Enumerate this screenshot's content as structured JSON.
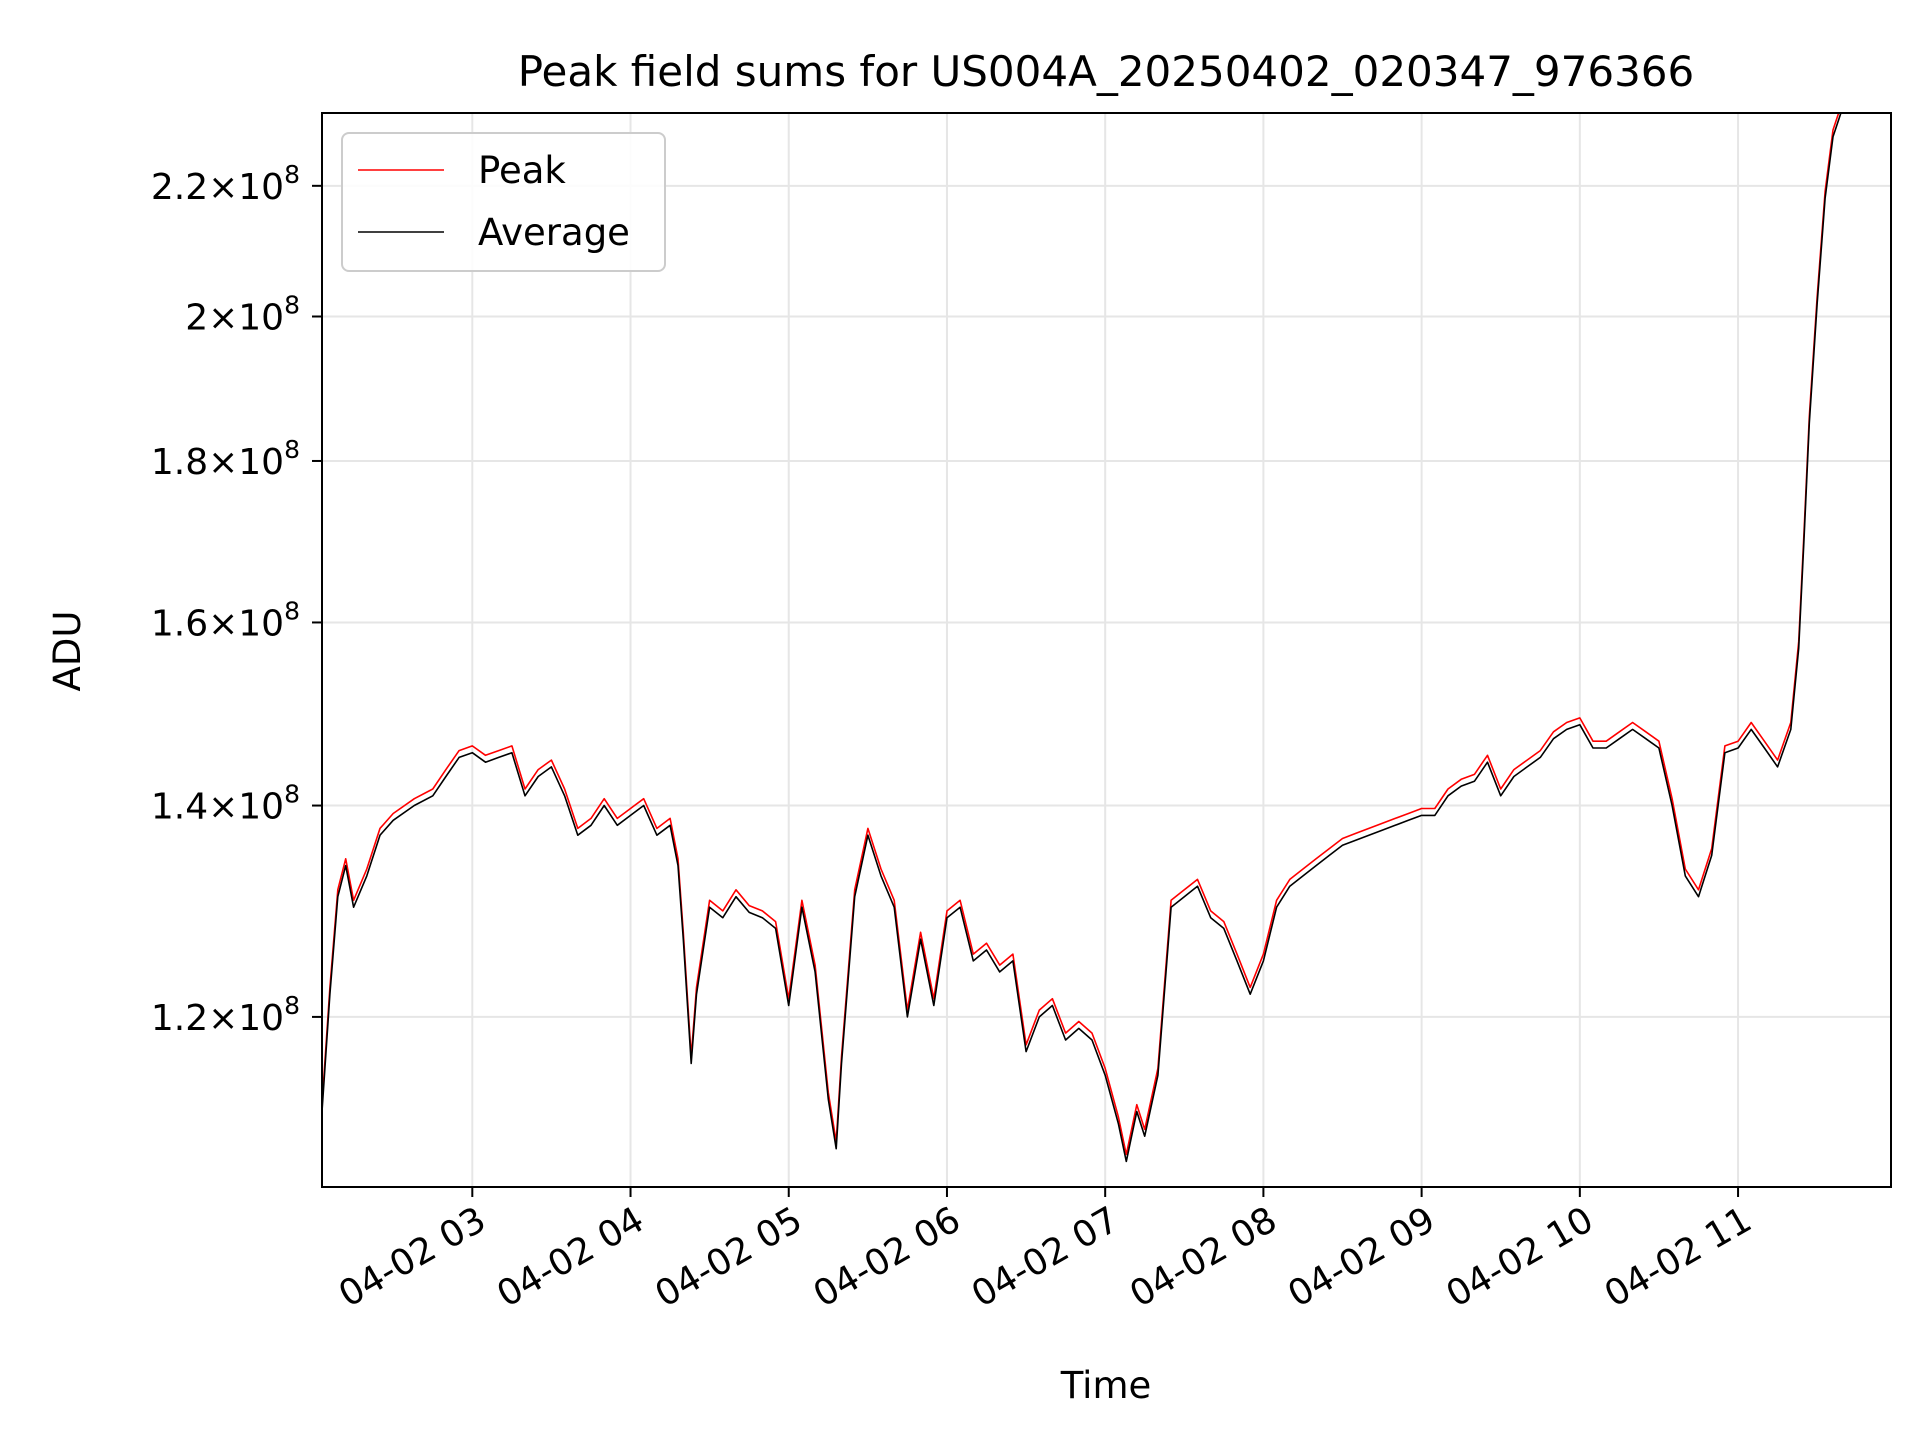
{
  "chart_data": {
    "type": "line",
    "title": "Peak field sums for US004A_20250402_020347_976366",
    "xlabel": "Time",
    "ylabel": "ADU",
    "yscale": "log",
    "grid": true,
    "legend_position": "top-left",
    "xlim": [
      "04-02 02:03",
      "04-02 11:58"
    ],
    "ylim": [
      106000000,
      232000000
    ],
    "x_ticks": [
      "04-02 03",
      "04-02 04",
      "04-02 05",
      "04-02 06",
      "04-02 07",
      "04-02 08",
      "04-02 09",
      "04-02 10",
      "04-02 11"
    ],
    "y_ticks": [
      {
        "mant": "1.2",
        "exp": "8",
        "value": 120000000
      },
      {
        "mant": "1.4",
        "exp": "8",
        "value": 140000000
      },
      {
        "mant": "1.6",
        "exp": "8",
        "value": 160000000
      },
      {
        "mant": "1.8",
        "exp": "8",
        "value": 180000000
      },
      {
        "mant": "2",
        "exp": "8",
        "value": 200000000
      },
      {
        "mant": "2.2",
        "exp": "8",
        "value": 220000000
      }
    ],
    "x_unit": "time (04-02 HH:MM)",
    "series": [
      {
        "name": "Average",
        "color": "#000000",
        "x": [
          "02:03",
          "02:06",
          "02:09",
          "02:12",
          "02:15",
          "02:20",
          "02:25",
          "02:30",
          "02:38",
          "02:45",
          "02:50",
          "02:55",
          "03:00",
          "03:05",
          "03:10",
          "03:15",
          "03:20",
          "03:25",
          "03:30",
          "03:35",
          "03:40",
          "03:45",
          "03:50",
          "03:55",
          "04:00",
          "04:05",
          "04:10",
          "04:15",
          "04:18",
          "04:20",
          "04:23",
          "04:25",
          "04:30",
          "04:35",
          "04:40",
          "04:45",
          "04:50",
          "04:55",
          "05:00",
          "05:05",
          "05:10",
          "05:15",
          "05:18",
          "05:20",
          "05:25",
          "05:30",
          "05:35",
          "05:40",
          "05:45",
          "05:50",
          "05:55",
          "06:00",
          "06:05",
          "06:10",
          "06:15",
          "06:20",
          "06:25",
          "06:30",
          "06:35",
          "06:40",
          "06:45",
          "06:50",
          "06:55",
          "07:00",
          "07:05",
          "07:08",
          "07:12",
          "07:15",
          "07:20",
          "07:25",
          "07:30",
          "07:35",
          "07:40",
          "07:45",
          "07:50",
          "07:55",
          "08:00",
          "08:05",
          "08:10",
          "08:15",
          "08:20",
          "08:25",
          "08:30",
          "08:35",
          "08:40",
          "08:45",
          "08:50",
          "08:55",
          "09:00",
          "09:05",
          "09:10",
          "09:15",
          "09:20",
          "09:25",
          "09:30",
          "09:35",
          "09:40",
          "09:45",
          "09:50",
          "09:55",
          "10:00",
          "10:05",
          "10:10",
          "10:15",
          "10:20",
          "10:25",
          "10:30",
          "10:35",
          "10:40",
          "10:45",
          "10:50",
          "10:55",
          "11:00",
          "11:05",
          "11:10",
          "11:15",
          "11:20",
          "11:23",
          "11:25",
          "11:27",
          "11:30",
          "11:33",
          "11:36",
          "11:39",
          "11:42",
          "11:45",
          "11:50",
          "11:58"
        ],
        "y": [
          112000000,
          122000000,
          131000000,
          134000000,
          130000000,
          133000000,
          137000000,
          138500000,
          140000000,
          141000000,
          143000000,
          145000000,
          145500000,
          144500000,
          145000000,
          145500000,
          141000000,
          143000000,
          144000000,
          141000000,
          137000000,
          138000000,
          140000000,
          138000000,
          139000000,
          140000000,
          137000000,
          138000000,
          134000000,
          127000000,
          116000000,
          122000000,
          130000000,
          129000000,
          131000000,
          129500000,
          129000000,
          128000000,
          121000000,
          130000000,
          124000000,
          113000000,
          109000000,
          116000000,
          131000000,
          137000000,
          133000000,
          130000000,
          120000000,
          127000000,
          121000000,
          129000000,
          130000000,
          125000000,
          126000000,
          124000000,
          125000000,
          117000000,
          120000000,
          121000000,
          118000000,
          119000000,
          118000000,
          115000000,
          111000000,
          108000000,
          112000000,
          110000000,
          115000000,
          130000000,
          131000000,
          132000000,
          129000000,
          128000000,
          125000000,
          122000000,
          125000000,
          130000000,
          132000000,
          133000000,
          134000000,
          135000000,
          136000000,
          136500000,
          137000000,
          137500000,
          138000000,
          138500000,
          139000000,
          139000000,
          141000000,
          142000000,
          142500000,
          144500000,
          141000000,
          143000000,
          144000000,
          145000000,
          147000000,
          148000000,
          148500000,
          146000000,
          146000000,
          147000000,
          148000000,
          147000000,
          146000000,
          140000000,
          133000000,
          131000000,
          135000000,
          145500000,
          146000000,
          148000000,
          146000000,
          144000000,
          148000000,
          157000000,
          170000000,
          185000000,
          202000000,
          218000000,
          228000000,
          232000000,
          232000000,
          232000000,
          232000000,
          232000000
        ]
      },
      {
        "name": "Peak",
        "color": "#ff0000",
        "offset_percent": 0.5
      }
    ]
  }
}
